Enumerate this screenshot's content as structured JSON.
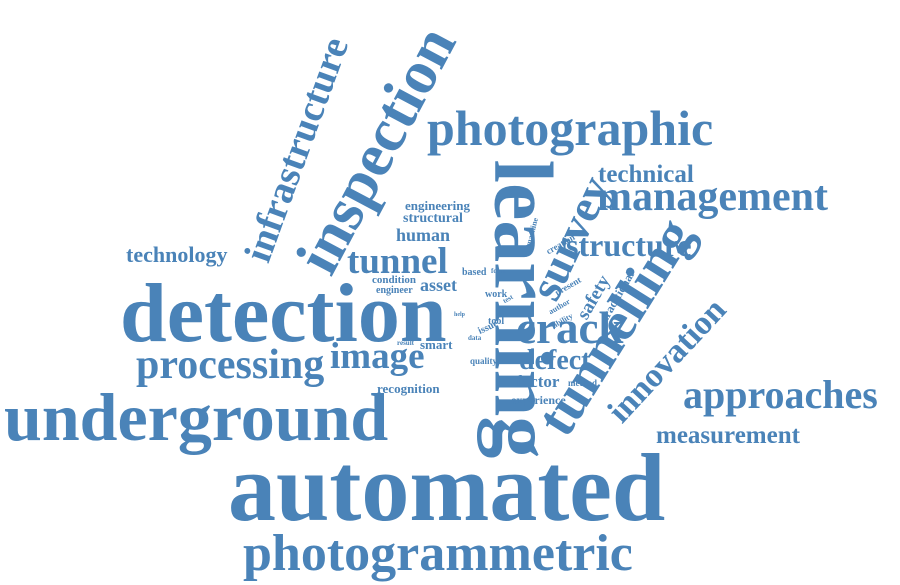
{
  "word_color": "#4a83b8",
  "background": "#ffffff",
  "words": {
    "automated": "automated",
    "photogrammetric": "photogrammetric",
    "underground": "underground",
    "detection": "detection",
    "photographic": "photographic",
    "management": "management",
    "technical": "technical",
    "learning": "learning",
    "inspection": "inspection",
    "infrastructure": "infrastructure",
    "tunnelling": "tunnelling",
    "innovation": "innovation",
    "approaches": "approaches",
    "measurement": "measurement",
    "processing": "processing",
    "image": "image",
    "crack": "crack",
    "survey": "survey",
    "tunnel": "tunnel",
    "structure": "structure",
    "defect": "defect",
    "technology": "technology",
    "human": "human",
    "structural": "structural",
    "engineering": "engineering",
    "asset": "asset",
    "condition": "condition",
    "engineer": "engineer",
    "smart": "smart",
    "factor": "factor",
    "recognition": "recognition",
    "experience": "experience",
    "quality": "quality",
    "tool": "tool",
    "work": "work",
    "based": "based",
    "focus": "focus",
    "machine": "machine",
    "creation": "creation",
    "present": "present",
    "safety": "safety",
    "traditional": "traditional",
    "method": "method",
    "issue": "issue",
    "result": "result",
    "data": "data",
    "author": "author",
    "ability": "ability",
    "test": "test",
    "help": "help"
  }
}
